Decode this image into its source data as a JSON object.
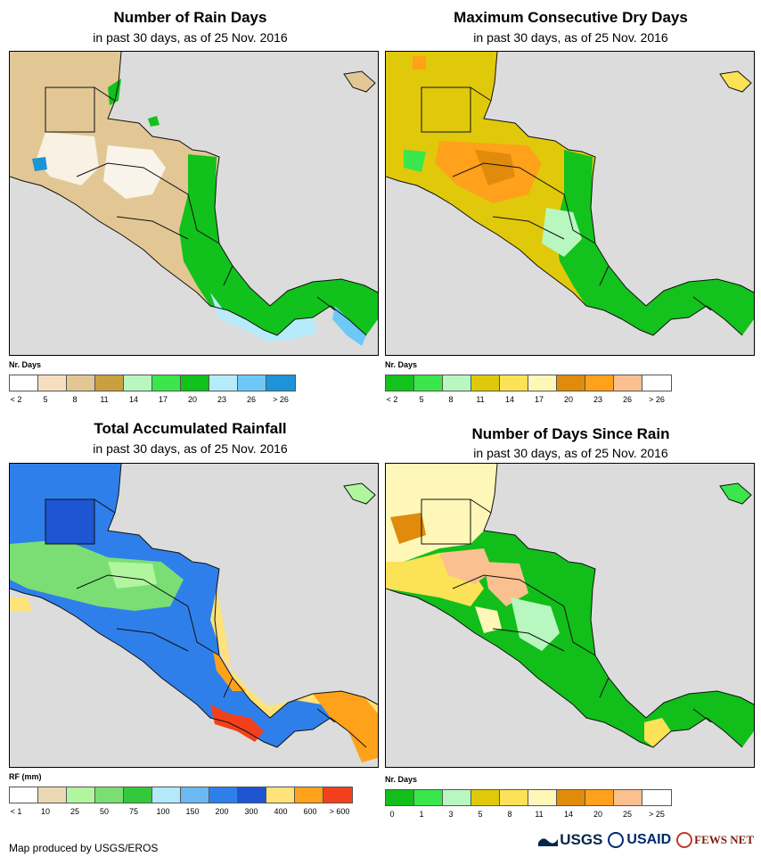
{
  "panels": [
    {
      "title": "Number of Rain Days",
      "subtitle": "in past 30 days, as of 25 Nov. 2016",
      "legend_unit": "Nr. Days",
      "legend_colors": [
        "#ffffff",
        "#f5dfc0",
        "#e2c795",
        "#c9a040",
        "#b8f7c0",
        "#3ae64b",
        "#10c21b",
        "#b6ebfb",
        "#6ec8f5",
        "#1e94d8"
      ],
      "legend_labels": [
        "< 2",
        "5",
        "8",
        "11",
        "14",
        "17",
        "20",
        "23",
        "26",
        "> 26"
      ]
    },
    {
      "title": "Maximum Consecutive Dry Days",
      "subtitle": "in past 30 days, as of 25 Nov. 2016",
      "legend_unit": "Nr. Days",
      "legend_colors": [
        "#13c21c",
        "#3ae64b",
        "#b8f7c0",
        "#e0c90a",
        "#fbe257",
        "#fff7b8",
        "#e08b0b",
        "#ffa11a",
        "#fbc090",
        "#ffffff"
      ],
      "legend_labels": [
        "< 2",
        "5",
        "8",
        "11",
        "14",
        "17",
        "20",
        "23",
        "26",
        "> 26"
      ]
    },
    {
      "title": "Total Accumulated Rainfall",
      "subtitle": "in past 30 days, as of 25 Nov. 2016",
      "legend_unit": "RF (mm)",
      "legend_colors": [
        "#ffffff",
        "#ebd8b5",
        "#b1f59f",
        "#7ade74",
        "#36c83c",
        "#b2e9fb",
        "#6bb8f3",
        "#2f7fea",
        "#1d55d2",
        "#ffe27a",
        "#ffa21b",
        "#f2401c"
      ],
      "legend_labels": [
        "< 1",
        "10",
        "25",
        "50",
        "75",
        "100",
        "150",
        "200",
        "300",
        "400",
        "600",
        "> 600"
      ]
    },
    {
      "title": "Number of Days Since Rain",
      "subtitle": "in past 30 days, as of 25 Nov. 2016",
      "legend_unit": "Nr. Days",
      "legend_colors": [
        "#12be1a",
        "#3ae64b",
        "#b8f7c0",
        "#e0c90a",
        "#fbe257",
        "#fff7b8",
        "#e08b0b",
        "#ffa11a",
        "#fbc090",
        "#ffffff"
      ],
      "legend_labels": [
        "0",
        "1",
        "3",
        "5",
        "8",
        "11",
        "14",
        "20",
        "25",
        "> 25"
      ]
    }
  ],
  "credit": "Map produced by USGS/EROS",
  "logos": {
    "usgs": "USGS",
    "usaid": "USAID",
    "fews": "FEWS NET"
  }
}
